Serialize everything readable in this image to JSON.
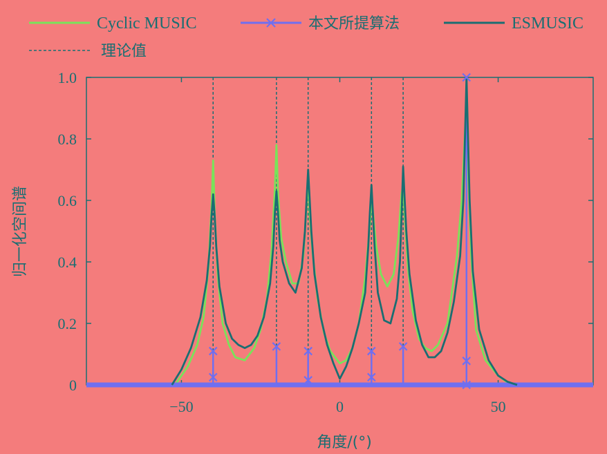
{
  "chart_data": {
    "type": "line",
    "title": "",
    "xlabel": "角度/(°)",
    "ylabel": "归一化空间谱",
    "xlim": [
      -80,
      80
    ],
    "ylim": [
      0,
      1.0
    ],
    "xticks": [
      -50,
      0,
      50
    ],
    "xtick_labels": [
      "−50",
      "0",
      "50"
    ],
    "yticks": [
      0,
      0.2,
      0.4,
      0.6,
      0.8,
      1.0
    ],
    "ytick_labels": [
      "0",
      "0.2",
      "0.4",
      "0.6",
      "0.8",
      "1.0"
    ],
    "grid": false,
    "legend_position": "top",
    "colors": {
      "cyclic_music": "#79e35a",
      "proposed": "#6f6ff0",
      "esmusic": "#1a6e72",
      "theory": "#1a6e72",
      "axis": "#1a6e72"
    },
    "theory_angles": [
      -40,
      -20,
      -10,
      10,
      20,
      40
    ],
    "series": [
      {
        "name": "Cyclic MUSIC",
        "x": [
          -52,
          -48,
          -45,
          -43,
          -41.5,
          -40.5,
          -40,
          -39.5,
          -38.5,
          -37,
          -35,
          -33,
          -30,
          -27,
          -25,
          -23,
          -21.5,
          -20.5,
          -20,
          -19.5,
          -18.5,
          -17,
          -15,
          -13,
          -11.5,
          -10.5,
          -10,
          -9.5,
          -8.5,
          -7,
          -5,
          -3,
          0,
          2,
          4,
          6,
          8,
          9.5,
          10,
          10.5,
          11.5,
          13,
          15,
          17,
          18.5,
          19.5,
          20,
          20.5,
          21.5,
          23,
          25,
          27,
          29,
          31,
          34,
          37,
          38.5,
          39.5,
          40,
          40.5,
          41.5,
          43,
          46,
          50,
          54
        ],
        "y": [
          0,
          0.06,
          0.13,
          0.22,
          0.38,
          0.58,
          0.73,
          0.56,
          0.35,
          0.2,
          0.13,
          0.09,
          0.08,
          0.12,
          0.18,
          0.28,
          0.44,
          0.64,
          0.78,
          0.62,
          0.48,
          0.4,
          0.33,
          0.33,
          0.42,
          0.58,
          0.68,
          0.55,
          0.42,
          0.28,
          0.17,
          0.11,
          0.07,
          0.08,
          0.12,
          0.2,
          0.35,
          0.52,
          0.6,
          0.56,
          0.45,
          0.36,
          0.32,
          0.36,
          0.48,
          0.62,
          0.65,
          0.55,
          0.38,
          0.24,
          0.15,
          0.12,
          0.11,
          0.13,
          0.2,
          0.42,
          0.6,
          0.82,
          0.92,
          0.7,
          0.42,
          0.18,
          0.08,
          0.03,
          0
        ]
      },
      {
        "name": "本文所提算法",
        "marker": "x",
        "x": [
          -40,
          -40,
          -20,
          -10,
          -10,
          10,
          10,
          20,
          40,
          40,
          40
        ],
        "y": [
          0.11,
          0.025,
          0.125,
          0.11,
          0.015,
          0.11,
          0.025,
          0.125,
          1.0,
          0.078,
          0
        ]
      },
      {
        "name": "ESMUSIC",
        "x": [
          -53,
          -50,
          -47,
          -44,
          -42,
          -41,
          -40.5,
          -40,
          -39.5,
          -39,
          -38,
          -36,
          -34,
          -32,
          -30,
          -28,
          -26,
          -24,
          -22,
          -21,
          -20.5,
          -20,
          -19.5,
          -19,
          -18,
          -16,
          -14,
          -12,
          -11,
          -10.5,
          -10,
          -9.5,
          -9,
          -8,
          -6,
          -4,
          -2,
          0,
          2,
          4,
          6,
          8,
          9,
          9.5,
          10,
          10.5,
          11,
          12,
          14,
          16,
          18,
          19,
          19.5,
          20,
          20.5,
          21,
          22,
          24,
          26,
          28,
          30,
          32,
          34,
          36,
          38,
          39,
          39.5,
          40,
          40.5,
          41,
          42,
          44,
          47,
          50,
          53,
          56
        ],
        "y": [
          0,
          0.05,
          0.12,
          0.22,
          0.34,
          0.45,
          0.55,
          0.62,
          0.55,
          0.45,
          0.32,
          0.2,
          0.15,
          0.13,
          0.12,
          0.13,
          0.16,
          0.22,
          0.33,
          0.45,
          0.56,
          0.63,
          0.56,
          0.47,
          0.4,
          0.33,
          0.3,
          0.38,
          0.5,
          0.6,
          0.7,
          0.6,
          0.5,
          0.36,
          0.22,
          0.13,
          0.07,
          0.02,
          0.06,
          0.12,
          0.2,
          0.3,
          0.45,
          0.56,
          0.65,
          0.55,
          0.45,
          0.3,
          0.21,
          0.2,
          0.28,
          0.4,
          0.55,
          0.71,
          0.6,
          0.5,
          0.36,
          0.21,
          0.13,
          0.09,
          0.09,
          0.11,
          0.17,
          0.27,
          0.42,
          0.6,
          0.8,
          1.0,
          0.8,
          0.6,
          0.37,
          0.18,
          0.08,
          0.03,
          0.01,
          0
        ]
      },
      {
        "name": "理论值",
        "style": "dashed",
        "x": [
          -40,
          -20,
          -10,
          10,
          20,
          40
        ],
        "y": [
          1.0,
          1.0,
          1.0,
          1.0,
          1.0,
          1.0
        ]
      }
    ]
  }
}
